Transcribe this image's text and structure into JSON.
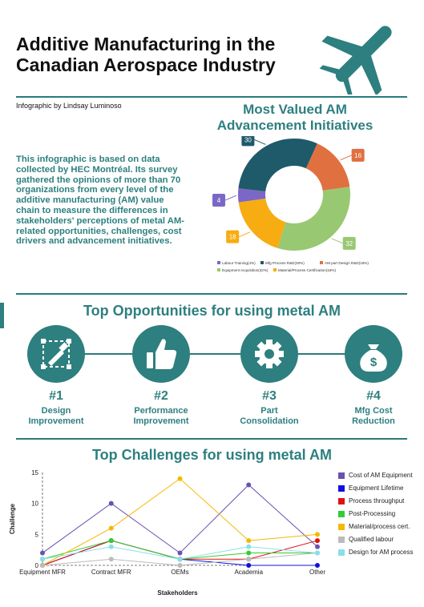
{
  "header": {
    "title": "Additive Manufacturing in the Canadian Aerospace Industry",
    "credit": "Infographic by Lindsay Luminoso"
  },
  "intro": "This infographic is based on data collected by HEC Montréal. Its survey gathered the opinions of more than 70 organizations from every level of the additive manufacturing (AM) value chain to measure the differences in stakeholders' perceptions of metal AM-related opportunities, challenges, cost drivers and advancement initiatives.",
  "donut": {
    "heading": "Most Valued AM Advancement Initiatives",
    "slices": [
      {
        "name": "Labour Training(4%)",
        "value": 4,
        "color": "#7b68c6"
      },
      {
        "name": "Mfg Process R&D(30%)",
        "value": 30,
        "color": "#1f5a6b"
      },
      {
        "name": "AM part Design R&D(16%)",
        "value": 16,
        "color": "#e07040"
      },
      {
        "name": "Equipment Acquisition(32%)",
        "value": 32,
        "color": "#99c873"
      },
      {
        "name": "Material/Process Certification(18%)",
        "value": 18,
        "color": "#f7ac12"
      }
    ]
  },
  "opportunities": {
    "heading": "Top Opportunities for using metal AM",
    "items": [
      {
        "rank": "#1",
        "label1": "Design",
        "label2": "Improvement",
        "icon": "design-icon"
      },
      {
        "rank": "#2",
        "label1": "Performance",
        "label2": "Improvement",
        "icon": "thumbs-up-icon"
      },
      {
        "rank": "#3",
        "label1": "Part",
        "label2": "Consolidation",
        "icon": "gear-icon"
      },
      {
        "rank": "#4",
        "label1": "Mfg Cost",
        "label2": "Reduction",
        "icon": "money-bag-icon"
      }
    ]
  },
  "challenges": {
    "heading": "Top Challenges for using metal AM"
  },
  "chart_data": {
    "type": "line",
    "title": "Top Challenges for using metal AM",
    "xlabel": "Stakeholders",
    "ylabel": "Challenge",
    "categories": [
      "Equipment MFR",
      "Contract MFR",
      "OEMs",
      "Academia",
      "Other"
    ],
    "ylim": [
      0,
      15
    ],
    "yticks": [
      0,
      5,
      10,
      15
    ],
    "legend_position": "right",
    "series": [
      {
        "name": "Cost of AM Equipment",
        "color": "#6a51b3",
        "values": [
          2,
          10,
          2,
          13,
          3
        ]
      },
      {
        "name": "Equipment Lifetime",
        "color": "#1010e0",
        "values": [
          0,
          4,
          1,
          0,
          0
        ]
      },
      {
        "name": "Process throughput",
        "color": "#e01010",
        "values": [
          0,
          4,
          1,
          1,
          4
        ]
      },
      {
        "name": "Post-Processing",
        "color": "#33cc33",
        "values": [
          1,
          4,
          1,
          2,
          2
        ]
      },
      {
        "name": "Material/process cert.",
        "color": "#f5b800",
        "values": [
          0,
          6,
          14,
          4,
          5
        ]
      },
      {
        "name": "Qualified labour",
        "color": "#bbbbbb",
        "values": [
          0,
          1,
          0,
          1,
          2
        ]
      },
      {
        "name": "Design for AM process",
        "color": "#88e0e8",
        "values": [
          1,
          3,
          1,
          3,
          2
        ]
      }
    ]
  }
}
